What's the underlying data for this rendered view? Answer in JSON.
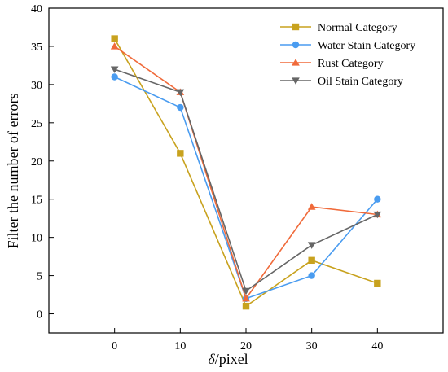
{
  "chart_data": {
    "type": "line",
    "title": "",
    "xlabel_italic": "δ",
    "xlabel_rest": "/pixel",
    "ylabel": "Filter the number of errors",
    "x": [
      0,
      10,
      20,
      30,
      40
    ],
    "x_ticks": [
      "0",
      "10",
      "20",
      "30",
      "40"
    ],
    "y_ticks": [
      "0",
      "5",
      "10",
      "15",
      "20",
      "25",
      "30",
      "35",
      "40"
    ],
    "xlim": [
      -10,
      50
    ],
    "ylim": [
      -2.5,
      40
    ],
    "grid": false,
    "legend_position": "top-right",
    "series": [
      {
        "name": "Normal Category",
        "values": [
          36,
          21,
          1,
          7,
          4
        ],
        "color": "#c8a21e",
        "marker": "square"
      },
      {
        "name": "Water Stain Category",
        "values": [
          31,
          27,
          2,
          5,
          15
        ],
        "color": "#4a9cf0",
        "marker": "circle"
      },
      {
        "name": "Rust Category",
        "values": [
          35,
          29,
          2,
          14,
          13
        ],
        "color": "#f06a3a",
        "marker": "triangle-up"
      },
      {
        "name": "Oil Stain Category",
        "values": [
          32,
          29,
          3,
          9,
          13
        ],
        "color": "#666666",
        "marker": "triangle-down"
      }
    ]
  }
}
